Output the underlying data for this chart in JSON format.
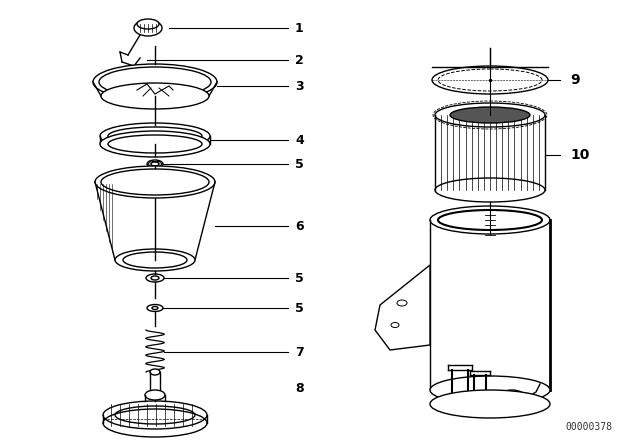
{
  "bg_color": "#ffffff",
  "fig_width": 6.4,
  "fig_height": 4.48,
  "dpi": 100,
  "watermark": "00000378",
  "line_color": "#000000",
  "text_color": "#000000",
  "lw": 1.0
}
